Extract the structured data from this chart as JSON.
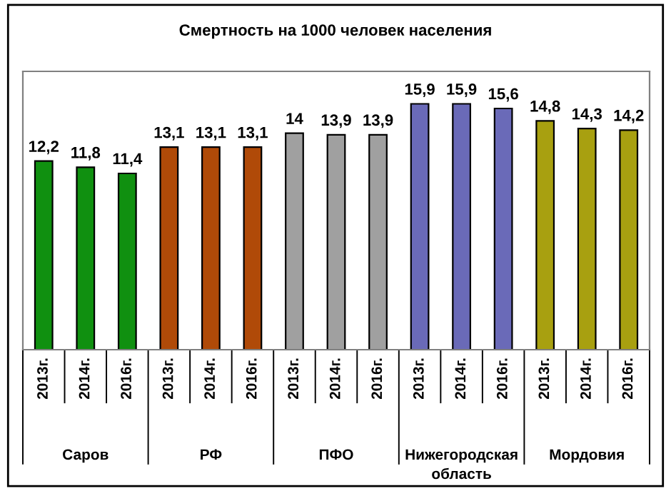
{
  "chart_data": {
    "type": "bar",
    "title": "Смертность на 1000 человек населения",
    "categories": [
      "2013г.",
      "2014г.",
      "2016г.",
      "2013г.",
      "2014г.",
      "2016г.",
      "2013г.",
      "2014г.",
      "2016г.",
      "2013г.",
      "2014г.",
      "2016г.",
      "2013г.",
      "2014г.",
      "2016г."
    ],
    "values": [
      12.2,
      11.8,
      11.4,
      13.1,
      13.1,
      13.1,
      14,
      13.9,
      13.9,
      15.9,
      15.9,
      15.6,
      14.8,
      14.3,
      14.2
    ],
    "value_labels": [
      "12,2",
      "11,8",
      "11,4",
      "13,1",
      "13,1",
      "13,1",
      "14",
      "13,9",
      "13,9",
      "15,9",
      "15,9",
      "15,6",
      "14,8",
      "14,3",
      "14,2"
    ],
    "colors": [
      "#109010",
      "#109010",
      "#109010",
      "#b04a08",
      "#b04a08",
      "#b04a08",
      "#a0a0a0",
      "#a0a0a0",
      "#a0a0a0",
      "#6a6ab8",
      "#6a6ab8",
      "#6a6ab8",
      "#a8a010",
      "#a8a010",
      "#a8a010"
    ],
    "annotations": [
      "Саров",
      "РФ",
      "ПФО",
      "Нижегородская\nобласть",
      "Мордовия"
    ],
    "ylim": [
      0,
      18
    ],
    "grid": false,
    "tick_labels": "x"
  }
}
